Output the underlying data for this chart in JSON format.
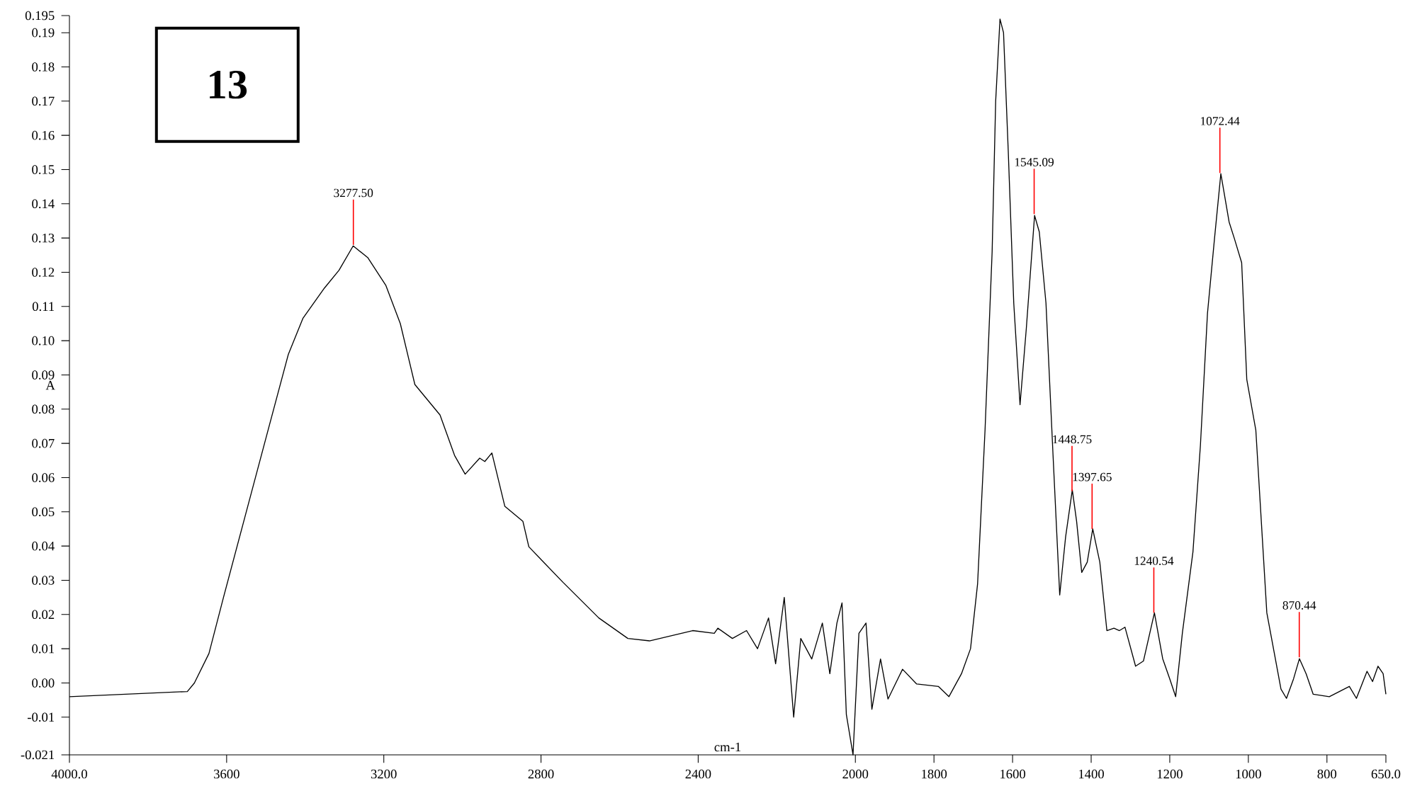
{
  "chart_data": {
    "type": "line",
    "xlabel": "cm-1",
    "ylabel": "A",
    "marker": "none",
    "xlim": [
      4000,
      650
    ],
    "ylim": [
      -0.021,
      0.195
    ],
    "xticks": [
      {
        "value": 4000,
        "label": "4000.0"
      },
      3600,
      3200,
      2800,
      2400,
      2000,
      1800,
      1600,
      1400,
      1200,
      1000,
      800,
      {
        "value": 650,
        "label": "650.0"
      }
    ],
    "yticks": [
      -0.021,
      -0.01,
      {
        "value": 0,
        "label": "0.00"
      },
      0.01,
      0.02,
      0.03,
      0.04,
      0.05,
      0.06,
      0.07,
      0.08,
      0.09,
      {
        "value": 0.1,
        "label": "0.10"
      },
      0.11,
      0.12,
      0.13,
      0.14,
      0.15,
      0.16,
      0.17,
      0.18,
      0.19,
      0.195
    ],
    "annotations": [
      "13",
      {
        "text": "3277.50",
        "x": 3277.5,
        "y": 0.128
      },
      {
        "text": "1545.09",
        "x": 1545.09,
        "y": 0.137
      },
      {
        "text": "1448.75",
        "x": 1448.75,
        "y": 0.056
      },
      {
        "text": "1397.65",
        "x": 1397.65,
        "y": 0.045
      },
      {
        "text": "1240.54",
        "x": 1240.54,
        "y": 0.0205
      },
      {
        "text": "1072.44",
        "x": 1072.44,
        "y": 0.149
      },
      {
        "text": "870.44",
        "x": 870.44,
        "y": 0.0075
      }
    ],
    "series": [
      {
        "color": "#000000",
        "x": [
          4000,
          3700,
          3682,
          3645,
          3608,
          3553,
          3498,
          3443,
          3406,
          3351,
          3314,
          3278,
          3241,
          3195,
          3158,
          3121,
          3057,
          3020,
          2993,
          2956,
          2943,
          2925,
          2892,
          2846,
          2831,
          2744,
          2653,
          2579,
          2524,
          2414,
          2359,
          2350,
          2313,
          2277,
          2249,
          2221,
          2203,
          2181,
          2157,
          2139,
          2111,
          2084,
          2065,
          2047,
          2034,
          2023,
          2006,
          1991,
          1973,
          1958,
          1936,
          1917,
          1880,
          1844,
          1789,
          1762,
          1730,
          1707,
          1689,
          1670,
          1652,
          1643,
          1632,
          1623,
          1611,
          1597,
          1581,
          1565,
          1544,
          1532,
          1515,
          1497,
          1480,
          1465,
          1448,
          1437,
          1424,
          1410,
          1396,
          1378,
          1360,
          1342,
          1328,
          1314,
          1287,
          1267,
          1239,
          1218,
          1200,
          1185,
          1168,
          1141,
          1122,
          1104,
          1086,
          1070,
          1049,
          1036,
          1017,
          1004,
          981,
          953,
          917,
          903,
          885,
          870,
          853,
          835,
          794,
          743,
          725,
          698,
          684,
          670,
          657,
          650
        ],
        "values": [
          -0.004,
          -0.0025,
          0.0,
          0.0086,
          0.025,
          0.0487,
          0.0724,
          0.096,
          0.1065,
          0.1154,
          0.1206,
          0.1277,
          0.1243,
          0.1162,
          0.105,
          0.0872,
          0.0783,
          0.0665,
          0.061,
          0.0657,
          0.0647,
          0.0672,
          0.0516,
          0.0472,
          0.0398,
          0.0294,
          0.019,
          0.013,
          0.0123,
          0.0153,
          0.0145,
          0.016,
          0.013,
          0.0153,
          0.01,
          0.019,
          0.0056,
          0.025,
          -0.01,
          0.013,
          0.007,
          0.0175,
          0.0027,
          0.0175,
          0.0234,
          -0.0092,
          -0.021,
          0.0145,
          0.0175,
          -0.0077,
          0.007,
          -0.0047,
          0.004,
          -0.0003,
          -0.001,
          -0.004,
          0.0027,
          0.01,
          0.029,
          0.074,
          0.126,
          0.17,
          0.194,
          0.19,
          0.1555,
          0.111,
          0.0813,
          0.1036,
          0.1366,
          0.1318,
          0.111,
          0.0665,
          0.0257,
          0.0427,
          0.0564,
          0.0472,
          0.0323,
          0.0353,
          0.045,
          0.0353,
          0.0153,
          0.016,
          0.0153,
          0.0163,
          0.0049,
          0.0064,
          0.0205,
          0.0071,
          0.0012,
          -0.004,
          0.0145,
          0.0383,
          0.0694,
          0.108,
          0.13,
          0.1488,
          0.1347,
          0.13,
          0.1228,
          0.0887,
          0.0739,
          0.0205,
          -0.0018,
          -0.0045,
          0.0012,
          0.0071,
          0.0027,
          -0.0033,
          -0.004,
          -0.001,
          -0.0045,
          0.0034,
          0.0004,
          0.0049,
          0.0027,
          -0.0033
        ]
      }
    ]
  }
}
